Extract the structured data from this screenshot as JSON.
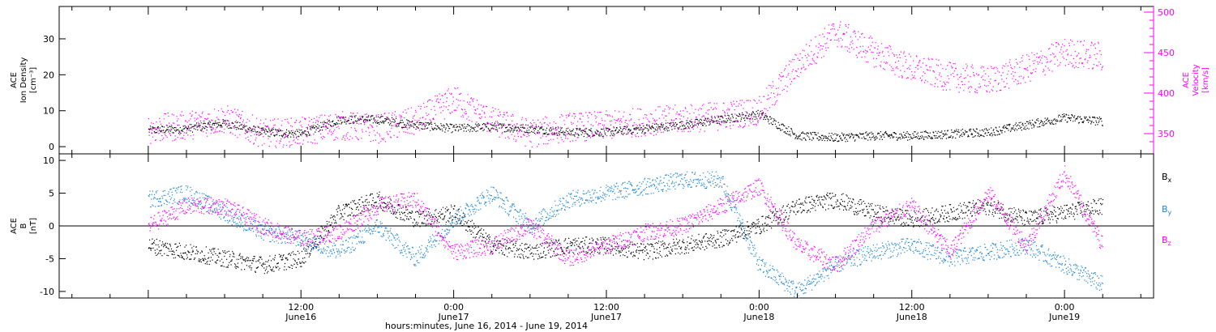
{
  "chart_data": [
    {
      "type": "scatter",
      "panel": "top",
      "yaxis_left": {
        "label_lines": [
          "ACE",
          "Ion Density",
          "[cm⁻³]"
        ],
        "ticks": [
          0,
          10,
          20,
          30
        ],
        "range": [
          -2,
          39
        ]
      },
      "yaxis_right": {
        "label_lines": [
          "ACE",
          "Velocity",
          "[km/s]"
        ],
        "ticks": [
          350,
          400,
          450,
          500
        ],
        "range": [
          325,
          507
        ],
        "color": "#ff00ff"
      },
      "series": [
        {
          "axis": "left",
          "color": "#000000",
          "x": [
            0,
            3,
            6,
            9,
            12,
            15,
            18,
            21,
            24,
            27,
            30,
            33,
            36,
            39,
            42,
            45,
            48,
            51,
            54,
            57,
            60,
            63,
            66,
            69,
            72,
            75
          ],
          "y": [
            4.5,
            5,
            6.5,
            4,
            3.5,
            7.5,
            7.5,
            6,
            5,
            5.5,
            5,
            4,
            4,
            5,
            6,
            7.5,
            9,
            3,
            2.5,
            3,
            3,
            3.5,
            4,
            6,
            8,
            7
          ]
        },
        {
          "axis": "right",
          "color": "#ff00ff",
          "x": [
            0,
            3,
            6,
            9,
            12,
            15,
            18,
            21,
            24,
            27,
            30,
            33,
            36,
            39,
            42,
            45,
            48,
            51,
            54,
            57,
            60,
            63,
            66,
            69,
            72,
            75
          ],
          "y": [
            355,
            360,
            368,
            350,
            352,
            360,
            356,
            365,
            392,
            365,
            350,
            358,
            360,
            365,
            368,
            372,
            378,
            435,
            475,
            450,
            430,
            420,
            415,
            430,
            450,
            445
          ]
        }
      ]
    },
    {
      "type": "scatter",
      "panel": "bottom",
      "yaxis_left": {
        "label_lines": [
          "ACE",
          "B",
          "[nT]"
        ],
        "ticks": [
          -10,
          -5,
          0,
          5,
          10
        ],
        "range": [
          -11,
          11
        ]
      },
      "zero_line": true,
      "legend": [
        "Bₓ",
        "Bᵧ",
        "Bₓ"
      ],
      "legend_labels": [
        {
          "base": "B",
          "sub": "x"
        },
        {
          "base": "B",
          "sub": "y"
        },
        {
          "base": "B",
          "sub": "z"
        }
      ],
      "series": [
        {
          "color": "#000000",
          "x": [
            0,
            3,
            6,
            9,
            12,
            15,
            18,
            21,
            24,
            27,
            30,
            33,
            36,
            39,
            42,
            45,
            48,
            51,
            54,
            57,
            60,
            63,
            66,
            69,
            72,
            75
          ],
          "y": [
            -3,
            -4,
            -5,
            -6,
            -5,
            2,
            4,
            1,
            2,
            -3,
            -4,
            -3,
            -3,
            -4,
            -3,
            -2,
            0,
            3,
            4,
            2,
            1,
            2,
            3,
            1,
            2,
            3
          ]
        },
        {
          "color": "#1f87d6",
          "x": [
            0,
            3,
            6,
            9,
            12,
            15,
            18,
            21,
            24,
            27,
            30,
            33,
            36,
            39,
            42,
            45,
            48,
            51,
            54,
            57,
            60,
            63,
            66,
            69,
            72,
            75
          ],
          "y": [
            4,
            5,
            2,
            -1,
            -2,
            -4,
            0,
            -5,
            1,
            5,
            0,
            4,
            5,
            6,
            7,
            7,
            -6,
            -10,
            -6,
            -4,
            -3,
            -5,
            -4,
            -3,
            -6,
            -9
          ]
        },
        {
          "color": "#ff00ff",
          "x": [
            0,
            3,
            6,
            9,
            12,
            15,
            18,
            21,
            24,
            27,
            30,
            33,
            36,
            39,
            42,
            45,
            48,
            51,
            54,
            57,
            60,
            63,
            66,
            69,
            72,
            75
          ],
          "y": [
            0,
            3,
            3,
            0,
            -2,
            -1,
            3,
            4,
            -4,
            -3,
            0,
            -5,
            -3,
            -1,
            0,
            3,
            6,
            -3,
            -6,
            0,
            3,
            -4,
            5,
            -3,
            8,
            -3
          ]
        }
      ]
    }
  ],
  "xaxis": {
    "title": "hours:minutes, June 16, 2014 - June 19, 2014",
    "range_hours": [
      -7,
      79
    ],
    "major_ticks": [
      {
        "hours": 12,
        "time": "12:00",
        "date": "June16"
      },
      {
        "hours": 24,
        "time": "0:00",
        "date": "June17"
      },
      {
        "hours": 36,
        "time": "12:00",
        "date": "June17"
      },
      {
        "hours": 48,
        "time": "0:00",
        "date": "June18"
      },
      {
        "hours": 60,
        "time": "12:00",
        "date": "June18"
      },
      {
        "hours": 72,
        "time": "0:00",
        "date": "June19"
      }
    ]
  }
}
